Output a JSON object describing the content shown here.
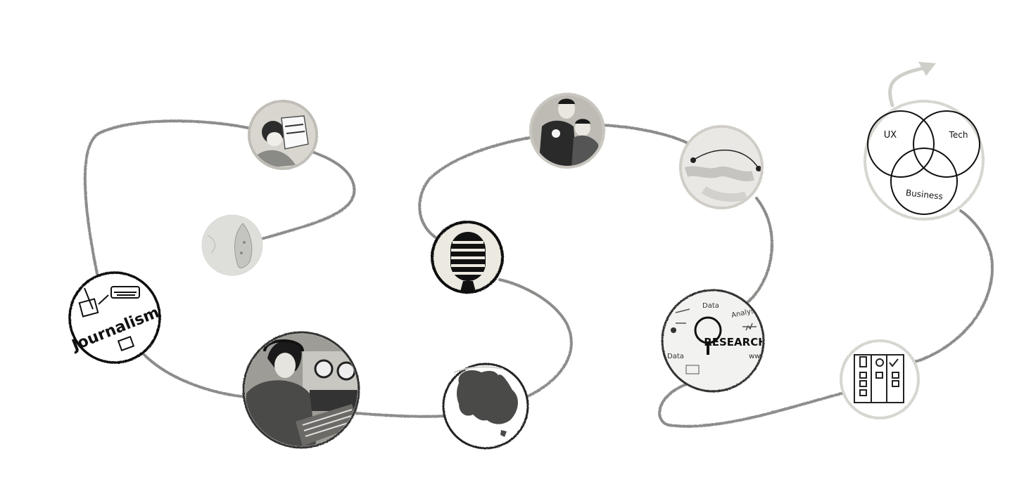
{
  "nodes": [
    {
      "id": "journalism",
      "icon": "journalism-sketch-icon",
      "label": "Journalism"
    },
    {
      "id": "childhood-reading",
      "icon": "child-reading-photo"
    },
    {
      "id": "taiwan-map",
      "icon": "taiwan-map-icon"
    },
    {
      "id": "radio-studio",
      "icon": "radio-studio-photo"
    },
    {
      "id": "australia-map",
      "icon": "australia-map-icon"
    },
    {
      "id": "microphone",
      "icon": "microphone-icon"
    },
    {
      "id": "kids-photo",
      "icon": "kids-photo"
    },
    {
      "id": "world-map",
      "icon": "world-flight-map-icon"
    },
    {
      "id": "research",
      "icon": "research-sketch-icon",
      "label": "RESEARCH",
      "words": [
        "Data",
        "Analysis",
        "Data",
        "www"
      ]
    },
    {
      "id": "checklist",
      "icon": "checklist-icon"
    },
    {
      "id": "venn",
      "icon": "venn-diagram-icon",
      "labels": [
        "UX",
        "Tech",
        "Business"
      ]
    }
  ],
  "colors": {
    "path": "#8c8c8a",
    "ink": "#111111",
    "fade_ring": "#c9c9c3",
    "arrow": "#cfcfc9"
  }
}
